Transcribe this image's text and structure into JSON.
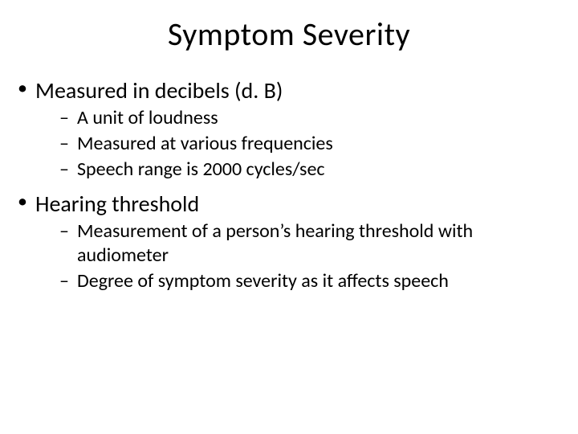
{
  "slide": {
    "title": "Symptom Severity",
    "title_fontsize": 40,
    "body_fontsize_l1": 28,
    "body_fontsize_l2": 24,
    "background_color": "#ffffff",
    "text_color": "#000000",
    "font_family": "Calibri",
    "bullets": [
      {
        "text": "Measured in decibels (d. B)",
        "sub": [
          "A unit of loudness",
          "Measured at various frequencies",
          "Speech range is 2000 cycles/sec"
        ]
      },
      {
        "text": "Hearing threshold",
        "sub": [
          "Measurement of a person’s hearing threshold with audiometer",
          "Degree of symptom severity as it affects speech"
        ]
      }
    ]
  }
}
